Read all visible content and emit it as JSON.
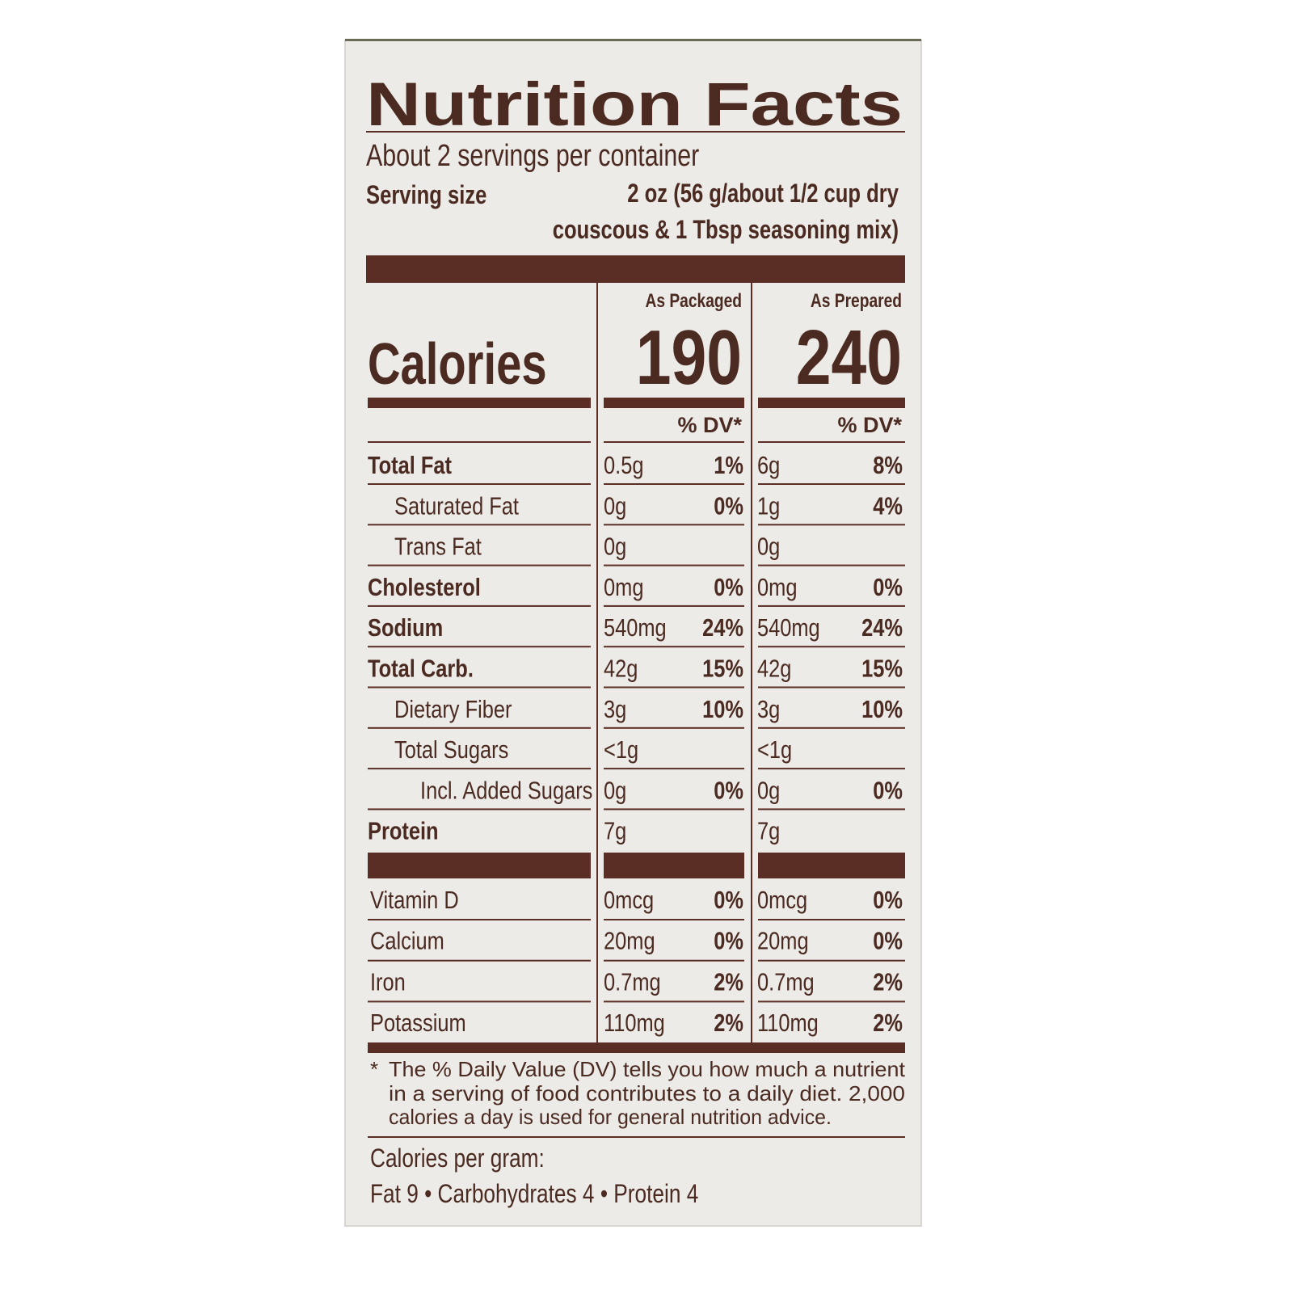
{
  "title": "Nutrition Facts",
  "servings": "About 2 servings per container",
  "serving_size": {
    "label": "Serving size",
    "lines": [
      "2 oz (56 g/about 1/2 cup dry",
      "couscous & 1 Tbsp seasoning mix)"
    ]
  },
  "columns": [
    "As Packaged",
    "As Prepared"
  ],
  "calories": {
    "label": "Calories",
    "values": [
      190,
      240
    ]
  },
  "dv_header": "% DV*",
  "rows": [
    {
      "name": "Total Fat",
      "level": 0,
      "bold": true,
      "packaged": "0.5g",
      "packaged_dv": "1%",
      "prepared": "6g",
      "prepared_dv": "8%"
    },
    {
      "name": "Saturated Fat",
      "level": 1,
      "bold": false,
      "packaged": "0g",
      "packaged_dv": "0%",
      "prepared": "1g",
      "prepared_dv": "4%"
    },
    {
      "name": "Trans Fat",
      "level": 1,
      "bold": false,
      "packaged": "0g",
      "prepared": "0g"
    },
    {
      "name": "Cholesterol",
      "level": 0,
      "bold": true,
      "packaged": "0mg",
      "packaged_dv": "0%",
      "prepared": "0mg",
      "prepared_dv": "0%"
    },
    {
      "name": "Sodium",
      "level": 0,
      "bold": true,
      "packaged": "540mg",
      "packaged_dv": "24%",
      "prepared": "540mg",
      "prepared_dv": "24%"
    },
    {
      "name": "Total Carb.",
      "level": 0,
      "bold": true,
      "packaged": "42g",
      "packaged_dv": "15%",
      "prepared": "42g",
      "prepared_dv": "15%"
    },
    {
      "name": "Dietary Fiber",
      "level": 1,
      "bold": false,
      "packaged": "3g",
      "packaged_dv": "10%",
      "prepared": "3g",
      "prepared_dv": "10%"
    },
    {
      "name": "Total Sugars",
      "level": 1,
      "bold": false,
      "packaged": "<1g",
      "prepared": "<1g"
    },
    {
      "name": "Incl. Added Sugars",
      "level": 2,
      "bold": false,
      "packaged": "0g",
      "packaged_dv": "0%",
      "prepared": "0g",
      "prepared_dv": "0%"
    },
    {
      "name": "Protein",
      "level": 0,
      "bold": true,
      "packaged": "7g",
      "prepared": "7g"
    }
  ],
  "vitamins": [
    {
      "name": "Vitamin D",
      "packaged": "0mcg",
      "packaged_dv": "0%",
      "prepared": "0mcg",
      "prepared_dv": "0%"
    },
    {
      "name": "Calcium",
      "packaged": "20mg",
      "packaged_dv": "0%",
      "prepared": "20mg",
      "prepared_dv": "0%"
    },
    {
      "name": "Iron",
      "packaged": "0.7mg",
      "packaged_dv": "2%",
      "prepared": "0.7mg",
      "prepared_dv": "2%"
    },
    {
      "name": "Potassium",
      "packaged": "110mg",
      "packaged_dv": "2%",
      "prepared": "110mg",
      "prepared_dv": "2%"
    }
  ],
  "footnote": {
    "marker": "*",
    "lines": [
      "The % Daily Value (DV) tells you how much a nutrient",
      "in a serving of food contributes to a daily diet. 2,000",
      "calories a day is used for general nutrition advice."
    ]
  },
  "calories_per_gram": {
    "label": "Calories per gram:",
    "values": "Fat 9 • Carbohydrates 4 • Protein 4"
  }
}
